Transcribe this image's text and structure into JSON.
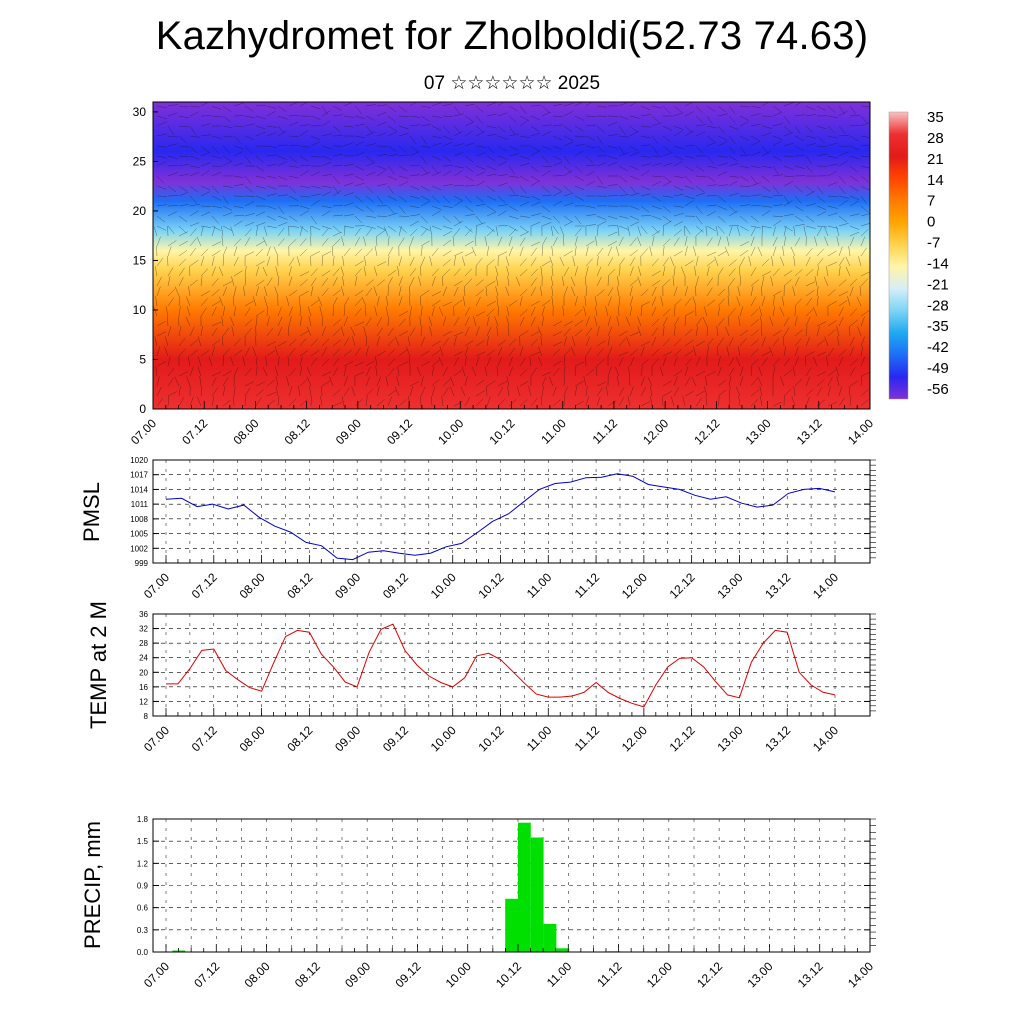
{
  "header": {
    "title": "Kazhydromet for Zholboldi(52.73 74.63)",
    "subtitle": "07 ☆☆☆☆☆☆ 2025"
  },
  "time_ticks": [
    "07.00",
    "07.12",
    "08.00",
    "08.12",
    "09.00",
    "09.12",
    "10.00",
    "10.12",
    "11.00",
    "11.12",
    "12.00",
    "12.12",
    "13.00",
    "13.12",
    "14.00"
  ],
  "chart_data": [
    {
      "type": "heatmap",
      "title": "",
      "x_ticks": [
        "07.00",
        "07.12",
        "08.00",
        "08.12",
        "09.00",
        "09.12",
        "10.00",
        "10.12",
        "11.00",
        "11.12",
        "12.00",
        "12.12",
        "13.00",
        "13.12",
        "14.00"
      ],
      "y_ticks": [
        0,
        5,
        10,
        15,
        20,
        25,
        30
      ],
      "ylim": [
        0,
        31
      ],
      "colorbar_labels": [
        "35",
        "28",
        "21",
        "14",
        "7",
        "0",
        "-7",
        "-14",
        "-21",
        "-28",
        "-35",
        "-42",
        "-49",
        "-56"
      ],
      "colorbar_colors": [
        "#f8c2c2",
        "#ee3030",
        "#e21a1a",
        "#ff4500",
        "#ff7a00",
        "#ffa500",
        "#ffd24d",
        "#fff5a8",
        "#d6eef8",
        "#7dd4f5",
        "#1eaaf0",
        "#1e6ef5",
        "#2828f0",
        "#8030d8"
      ],
      "level_profile": [
        {
          "z": 0,
          "t": 30
        },
        {
          "z": 5,
          "t": 22
        },
        {
          "z": 10,
          "t": 10
        },
        {
          "z": 14,
          "t": -5
        },
        {
          "z": 16,
          "t": -14
        },
        {
          "z": 18,
          "t": -28
        },
        {
          "z": 21,
          "t": -42
        },
        {
          "z": 23,
          "t": -55
        },
        {
          "z": 26,
          "t": -52
        },
        {
          "z": 31,
          "t": -58
        }
      ]
    },
    {
      "type": "line",
      "ylabel": "PMSL",
      "ylim": [
        999,
        1020
      ],
      "y_ticks": [
        999,
        1002,
        1005,
        1008,
        1011,
        1014,
        1017,
        1020
      ],
      "x_ticks": [
        "07.00",
        "07.12",
        "08.00",
        "08.12",
        "09.00",
        "09.12",
        "10.00",
        "10.12",
        "11.00",
        "11.12",
        "12.00",
        "12.12",
        "13.00",
        "13.12",
        "14.00"
      ],
      "color": "#0000cc",
      "series": [
        {
          "values": [
            1012.0,
            1012.2,
            1010.5,
            1011.0,
            1010.0,
            1010.8,
            1008.3,
            1006.5,
            1005.3,
            1003.2,
            1002.5,
            1000.0,
            999.7,
            1001.2,
            1001.5,
            1001.0,
            1000.6,
            1001.0,
            1002.3,
            1003.0,
            1005.2,
            1007.5,
            1009.0,
            1011.5,
            1014.0,
            1015.2,
            1015.5,
            1016.4,
            1016.5,
            1017.2,
            1016.7,
            1015.0,
            1014.5,
            1014.0,
            1012.8,
            1012.0,
            1012.5,
            1011.2,
            1010.4,
            1010.8,
            1013.2,
            1014.0,
            1014.2,
            1013.5
          ]
        }
      ]
    },
    {
      "type": "line",
      "ylabel": "TEMP at 2 M",
      "ylim": [
        8,
        36
      ],
      "y_ticks": [
        8,
        12,
        16,
        20,
        24,
        28,
        32,
        36
      ],
      "x_ticks": [
        "07.00",
        "07.12",
        "08.00",
        "08.12",
        "09.00",
        "09.12",
        "10.00",
        "10.12",
        "11.00",
        "11.12",
        "12.00",
        "12.12",
        "13.00",
        "13.12",
        "14.00"
      ],
      "color": "#dd0000",
      "series": [
        {
          "values": [
            16.8,
            16.8,
            21.0,
            26.0,
            26.4,
            20.5,
            18.0,
            15.8,
            14.8,
            22.5,
            29.8,
            31.5,
            31.0,
            25.0,
            21.5,
            17.3,
            16.0,
            25.5,
            31.8,
            33.2,
            26.0,
            22.0,
            19.0,
            17.2,
            16.0,
            18.5,
            24.5,
            25.2,
            23.5,
            20.3,
            17.0,
            14.0,
            13.2,
            13.2,
            13.5,
            14.5,
            17.2,
            14.5,
            12.8,
            11.5,
            10.5,
            16.5,
            21.5,
            23.8,
            24.0,
            21.5,
            17.5,
            13.8,
            13.0,
            22.8,
            28.0,
            31.5,
            31.0,
            20.0,
            16.5,
            14.5,
            13.8
          ]
        }
      ]
    },
    {
      "type": "bar",
      "ylabel": "PRECIP, mm",
      "ylim": [
        0,
        1.8
      ],
      "y_ticks": [
        "0.0",
        "0.3",
        "0.6",
        "0.9",
        "1.2",
        "1.5",
        "1.8"
      ],
      "x_ticks": [
        "07.00",
        "07.12",
        "08.00",
        "08.12",
        "09.00",
        "09.12",
        "10.00",
        "10.12",
        "11.00",
        "11.12",
        "12.00",
        "12.12",
        "13.00",
        "13.12",
        "14.00"
      ],
      "color": "#00e000",
      "series": [
        {
          "values": [
            0,
            0.02,
            0,
            0,
            0,
            0,
            0,
            0,
            0,
            0,
            0,
            0,
            0,
            0,
            0,
            0,
            0,
            0,
            0,
            0,
            0,
            0.01,
            0,
            0,
            0,
            0,
            0,
            0.72,
            1.75,
            1.55,
            0.38,
            0.05,
            0,
            0,
            0,
            0.01,
            0,
            0,
            0,
            0,
            0,
            0,
            0,
            0,
            0,
            0,
            0,
            0,
            0,
            0,
            0,
            0,
            0,
            0,
            0,
            0
          ]
        }
      ]
    }
  ]
}
